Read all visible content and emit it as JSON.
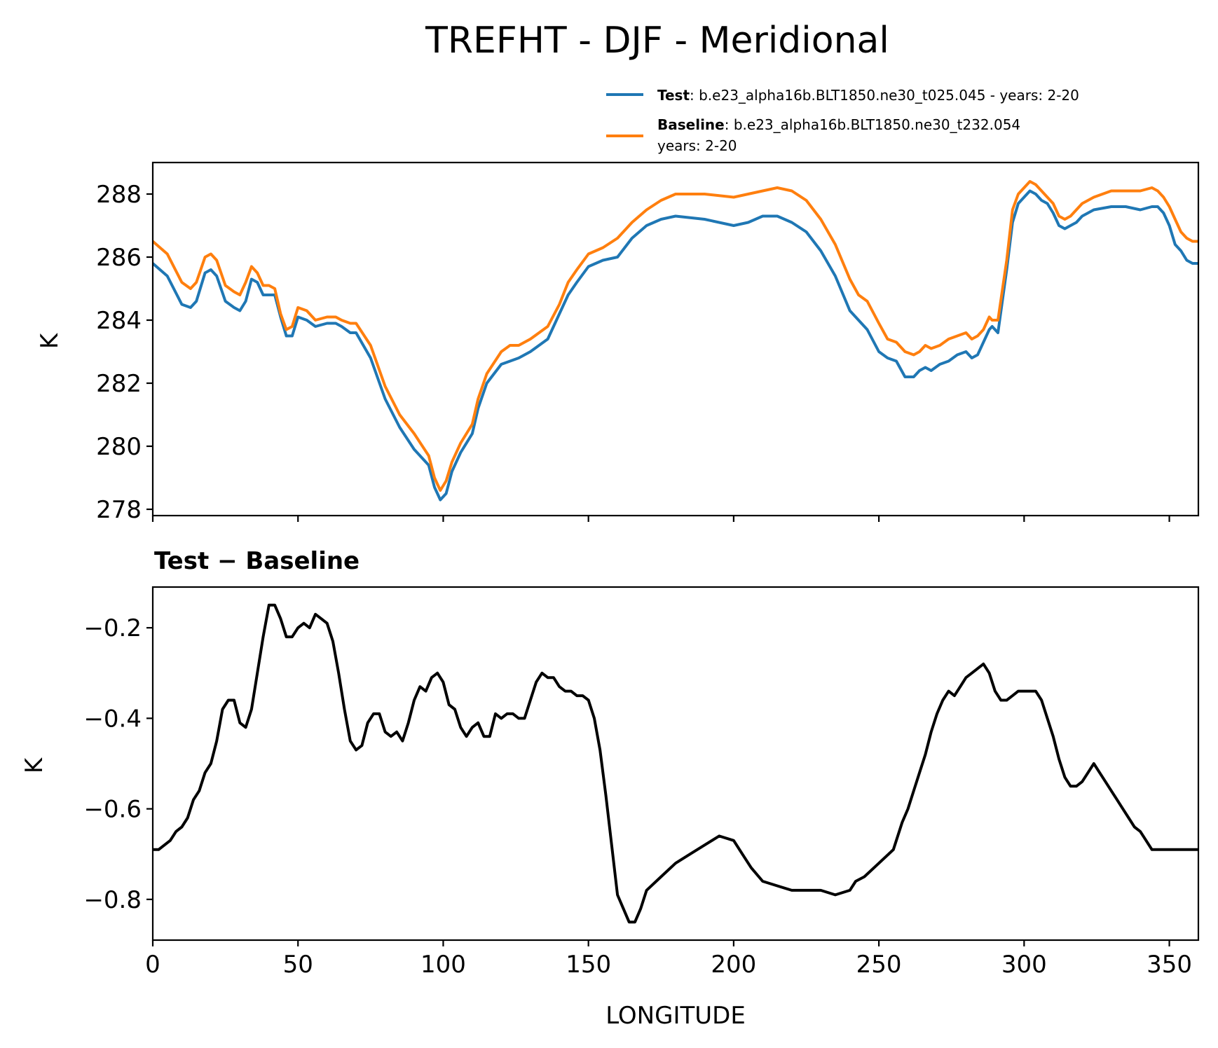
{
  "chart_data": [
    {
      "type": "line",
      "title": "TREFHT - DJF - Meridional",
      "ylabel": "K",
      "xlim": [
        0,
        360
      ],
      "ylim": [
        277.8,
        289.0
      ],
      "yticks": [
        278,
        280,
        282,
        284,
        286,
        288
      ],
      "legend_position": "above-right",
      "series": [
        {
          "name": "Test",
          "label_rest": ": b.e23_alpha16b.BLT1850.ne30_t025.045 - years: 2-20",
          "color": "#1f77b4",
          "x": [
            0,
            5,
            10,
            13,
            15,
            18,
            20,
            22,
            25,
            28,
            30,
            32,
            34,
            36,
            38,
            40,
            42,
            44,
            46,
            48,
            50,
            53,
            56,
            60,
            63,
            65,
            68,
            70,
            75,
            80,
            85,
            90,
            95,
            97,
            99,
            101,
            103,
            106,
            110,
            112,
            115,
            120,
            123,
            126,
            130,
            133,
            136,
            140,
            143,
            146,
            150,
            155,
            160,
            165,
            170,
            175,
            180,
            190,
            200,
            205,
            210,
            215,
            220,
            225,
            230,
            235,
            240,
            243,
            246,
            250,
            253,
            256,
            259,
            262,
            264,
            266,
            268,
            271,
            274,
            277,
            280,
            282,
            284,
            286,
            288,
            289,
            291,
            294,
            296,
            298,
            300,
            302,
            304,
            306,
            308,
            310,
            312,
            314,
            316,
            318,
            320,
            324,
            330,
            335,
            340,
            344,
            346,
            348,
            350,
            352,
            354,
            356,
            358,
            360
          ],
          "values": [
            285.8,
            285.4,
            284.5,
            284.4,
            284.6,
            285.5,
            285.6,
            285.4,
            284.6,
            284.4,
            284.3,
            284.6,
            285.3,
            285.2,
            284.8,
            284.8,
            284.8,
            284.1,
            283.5,
            283.5,
            284.1,
            284.0,
            283.8,
            283.9,
            283.9,
            283.8,
            283.6,
            283.6,
            282.8,
            281.5,
            280.6,
            279.9,
            279.4,
            278.7,
            278.3,
            278.5,
            279.2,
            279.8,
            280.4,
            281.2,
            282.0,
            282.6,
            282.7,
            282.8,
            283.0,
            283.2,
            283.4,
            284.2,
            284.8,
            285.2,
            285.7,
            285.9,
            286.0,
            286.6,
            287.0,
            287.2,
            287.3,
            287.2,
            287.0,
            287.1,
            287.3,
            287.3,
            287.1,
            286.8,
            286.2,
            285.4,
            284.3,
            284.0,
            283.7,
            283.0,
            282.8,
            282.7,
            282.2,
            282.2,
            282.4,
            282.5,
            282.4,
            282.6,
            282.7,
            282.9,
            283.0,
            282.8,
            282.9,
            283.3,
            283.7,
            283.8,
            283.6,
            285.6,
            287.1,
            287.7,
            287.9,
            288.1,
            288.0,
            287.8,
            287.7,
            287.4,
            287.0,
            286.9,
            287.0,
            287.1,
            287.3,
            287.5,
            287.6,
            287.6,
            287.5,
            287.6,
            287.6,
            287.4,
            287.0,
            286.4,
            286.2,
            285.9,
            285.8,
            285.8
          ]
        },
        {
          "name": "Baseline",
          "label_rest": ": b.e23_alpha16b.BLT1850.ne30_t232.054",
          "label_line2": "years: 2-20",
          "color": "#ff7f0e",
          "x": [
            0,
            5,
            10,
            13,
            15,
            18,
            20,
            22,
            25,
            28,
            30,
            32,
            34,
            36,
            38,
            40,
            42,
            44,
            46,
            48,
            50,
            53,
            56,
            60,
            63,
            65,
            68,
            70,
            75,
            80,
            85,
            90,
            95,
            97,
            99,
            101,
            103,
            106,
            110,
            112,
            115,
            120,
            123,
            126,
            130,
            133,
            136,
            140,
            143,
            146,
            150,
            155,
            160,
            165,
            170,
            175,
            180,
            190,
            200,
            205,
            210,
            215,
            220,
            225,
            230,
            235,
            240,
            243,
            246,
            250,
            253,
            256,
            259,
            262,
            264,
            266,
            268,
            271,
            274,
            277,
            280,
            282,
            284,
            286,
            288,
            289,
            291,
            294,
            296,
            298,
            300,
            302,
            304,
            306,
            308,
            310,
            312,
            314,
            316,
            318,
            320,
            324,
            330,
            335,
            340,
            344,
            346,
            348,
            350,
            352,
            354,
            356,
            358,
            360
          ],
          "values": [
            286.5,
            286.1,
            285.2,
            285.0,
            285.2,
            286.0,
            286.1,
            285.9,
            285.1,
            284.9,
            284.8,
            285.2,
            285.7,
            285.5,
            285.1,
            285.1,
            285.0,
            284.2,
            283.7,
            283.8,
            284.4,
            284.3,
            284.0,
            284.1,
            284.1,
            284.0,
            283.9,
            283.9,
            283.2,
            281.9,
            281.0,
            280.4,
            279.7,
            279.0,
            278.6,
            278.9,
            279.5,
            280.1,
            280.7,
            281.5,
            282.3,
            283.0,
            283.2,
            283.2,
            283.4,
            283.6,
            283.8,
            284.5,
            285.2,
            285.6,
            286.1,
            286.3,
            286.6,
            287.1,
            287.5,
            287.8,
            288.0,
            288.0,
            287.9,
            288.0,
            288.1,
            288.2,
            288.1,
            287.8,
            287.2,
            286.4,
            285.3,
            284.8,
            284.6,
            283.9,
            283.4,
            283.3,
            283.0,
            282.9,
            283.0,
            283.2,
            283.1,
            283.2,
            283.4,
            283.5,
            283.6,
            283.4,
            283.5,
            283.7,
            284.1,
            284.0,
            284.0,
            285.9,
            287.5,
            288.0,
            288.2,
            288.4,
            288.3,
            288.1,
            287.9,
            287.7,
            287.3,
            287.2,
            287.3,
            287.5,
            287.7,
            287.9,
            288.1,
            288.1,
            288.1,
            288.2,
            288.1,
            287.9,
            287.6,
            287.2,
            286.8,
            286.6,
            286.5,
            286.5
          ]
        }
      ]
    },
    {
      "type": "line",
      "title": "Test − Baseline",
      "xlabel": "LONGITUDE",
      "ylabel": "K",
      "xlim": [
        0,
        360
      ],
      "ylim": [
        -0.89,
        -0.11
      ],
      "xticks": [
        0,
        50,
        100,
        150,
        200,
        250,
        300,
        350
      ],
      "yticks": [
        -0.8,
        -0.6,
        -0.4,
        -0.2
      ],
      "ytick_labels": [
        "−0.8",
        "−0.6",
        "−0.4",
        "−0.2"
      ],
      "series": [
        {
          "name": "Test − Baseline",
          "color": "#000000",
          "x": [
            0,
            2,
            4,
            6,
            8,
            10,
            12,
            14,
            16,
            18,
            20,
            22,
            24,
            26,
            28,
            30,
            32,
            34,
            36,
            38,
            40,
            42,
            44,
            46,
            48,
            50,
            52,
            54,
            56,
            58,
            60,
            62,
            64,
            66,
            68,
            70,
            72,
            74,
            76,
            78,
            80,
            82,
            84,
            86,
            88,
            90,
            92,
            94,
            96,
            98,
            100,
            102,
            104,
            106,
            108,
            110,
            112,
            114,
            116,
            118,
            120,
            122,
            124,
            126,
            128,
            130,
            132,
            134,
            136,
            138,
            140,
            142,
            144,
            146,
            148,
            150,
            152,
            154,
            156,
            158,
            160,
            162,
            164,
            166,
            168,
            170,
            175,
            180,
            185,
            190,
            195,
            200,
            203,
            206,
            210,
            215,
            220,
            225,
            230,
            235,
            240,
            242,
            245,
            250,
            255,
            258,
            260,
            262,
            264,
            266,
            268,
            270,
            272,
            274,
            276,
            278,
            280,
            282,
            284,
            286,
            288,
            290,
            292,
            294,
            296,
            298,
            300,
            302,
            304,
            306,
            308,
            310,
            312,
            314,
            316,
            318,
            320,
            322,
            324,
            326,
            328,
            330,
            332,
            334,
            336,
            338,
            340,
            342,
            344,
            346,
            348,
            350,
            352,
            354,
            356,
            358,
            360
          ],
          "values": [
            -0.69,
            -0.69,
            -0.68,
            -0.67,
            -0.65,
            -0.64,
            -0.62,
            -0.58,
            -0.56,
            -0.52,
            -0.5,
            -0.45,
            -0.38,
            -0.36,
            -0.36,
            -0.41,
            -0.42,
            -0.38,
            -0.3,
            -0.22,
            -0.15,
            -0.15,
            -0.18,
            -0.22,
            -0.22,
            -0.2,
            -0.19,
            -0.2,
            -0.17,
            -0.18,
            -0.19,
            -0.23,
            -0.3,
            -0.38,
            -0.45,
            -0.47,
            -0.46,
            -0.41,
            -0.39,
            -0.39,
            -0.43,
            -0.44,
            -0.43,
            -0.45,
            -0.41,
            -0.36,
            -0.33,
            -0.34,
            -0.31,
            -0.3,
            -0.32,
            -0.37,
            -0.38,
            -0.42,
            -0.44,
            -0.42,
            -0.41,
            -0.44,
            -0.44,
            -0.39,
            -0.4,
            -0.39,
            -0.39,
            -0.4,
            -0.4,
            -0.36,
            -0.32,
            -0.3,
            -0.31,
            -0.31,
            -0.33,
            -0.34,
            -0.34,
            -0.35,
            -0.35,
            -0.36,
            -0.4,
            -0.47,
            -0.57,
            -0.68,
            -0.79,
            -0.82,
            -0.85,
            -0.85,
            -0.82,
            -0.78,
            -0.75,
            -0.72,
            -0.7,
            -0.68,
            -0.66,
            -0.67,
            -0.7,
            -0.73,
            -0.76,
            -0.77,
            -0.78,
            -0.78,
            -0.78,
            -0.79,
            -0.78,
            -0.76,
            -0.75,
            -0.72,
            -0.69,
            -0.63,
            -0.6,
            -0.56,
            -0.52,
            -0.48,
            -0.43,
            -0.39,
            -0.36,
            -0.34,
            -0.35,
            -0.33,
            -0.31,
            -0.3,
            -0.29,
            -0.28,
            -0.3,
            -0.34,
            -0.36,
            -0.36,
            -0.35,
            -0.34,
            -0.34,
            -0.34,
            -0.34,
            -0.36,
            -0.4,
            -0.44,
            -0.49,
            -0.53,
            -0.55,
            -0.55,
            -0.54,
            -0.52,
            -0.5,
            -0.52,
            -0.54,
            -0.56,
            -0.58,
            -0.6,
            -0.62,
            -0.64,
            -0.65,
            -0.67,
            -0.69,
            -0.69,
            -0.69,
            -0.69,
            -0.69,
            -0.69,
            -0.69,
            -0.69,
            -0.69
          ]
        }
      ]
    }
  ]
}
